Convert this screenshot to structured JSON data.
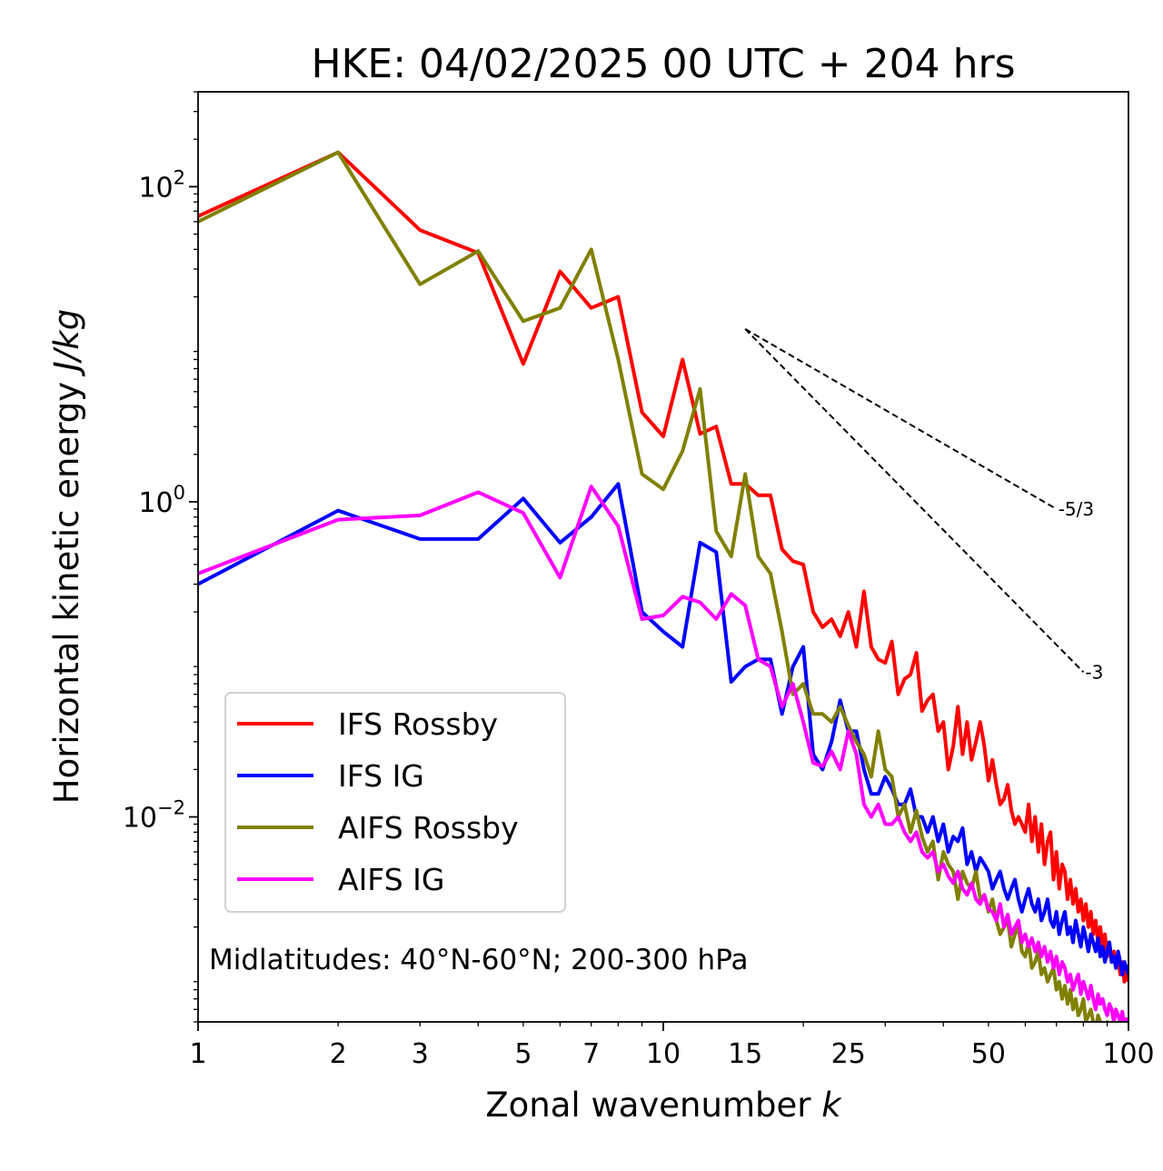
{
  "chart_data": {
    "type": "line",
    "title": "HKE: 04/02/2025 00 UTC + 204 hrs",
    "xlabel": "Zonal wavenumber",
    "xlabel_italic": "k",
    "ylabel": "Horizontal kinetic energy",
    "ylabel_italic": "J/kg",
    "xscale": "log",
    "yscale": "log",
    "xlim": [
      1,
      100
    ],
    "ylim": [
      0.0005,
      400
    ],
    "x_ticks": [
      {
        "value": 1,
        "label": "1"
      },
      {
        "value": 2,
        "label": "2"
      },
      {
        "value": 3,
        "label": "3"
      },
      {
        "value": 5,
        "label": "5"
      },
      {
        "value": 7,
        "label": "7"
      },
      {
        "value": 10,
        "label": "10"
      },
      {
        "value": 15,
        "label": "15"
      },
      {
        "value": 25,
        "label": "25"
      },
      {
        "value": 50,
        "label": "50"
      },
      {
        "value": 100,
        "label": "100"
      }
    ],
    "y_ticks": [
      {
        "value": 0.01,
        "base": "10",
        "exp": "−2"
      },
      {
        "value": 1,
        "base": "10",
        "exp": "0"
      },
      {
        "value": 100,
        "base": "10",
        "exp": "2"
      }
    ],
    "annotation": "Midlatitudes: 40°N-60°N; 200-300 hPa",
    "legend_position": "lower-left",
    "reference_lines": [
      {
        "label": "-5/3",
        "slope": -1.6667,
        "x": [
          15,
          70
        ],
        "y": [
          12.5,
          0.9
        ]
      },
      {
        "label": "-3",
        "slope": -3,
        "x": [
          15,
          80
        ],
        "y": [
          12.5,
          0.083
        ]
      }
    ],
    "series": [
      {
        "name": "IFS Rossby",
        "color": "#ff0000",
        "x": [
          1,
          2,
          3,
          4,
          5,
          6,
          7,
          8,
          9,
          10,
          11,
          12,
          13,
          14,
          15,
          16,
          17,
          18,
          19,
          20,
          21,
          22,
          23,
          24,
          25,
          26,
          27,
          28,
          29,
          30,
          31,
          32,
          33,
          34,
          35,
          36,
          37,
          38,
          39,
          40,
          41,
          42,
          43,
          44,
          45,
          46,
          47,
          48,
          49,
          50,
          51,
          52,
          53,
          54,
          55,
          56,
          57,
          58,
          59,
          60,
          61,
          62,
          63,
          64,
          65,
          66,
          67,
          68,
          69,
          70,
          71,
          72,
          73,
          74,
          75,
          76,
          77,
          78,
          79,
          80,
          81,
          82,
          83,
          84,
          85,
          86,
          87,
          88,
          89,
          90,
          91,
          92,
          93,
          94,
          95,
          96,
          97,
          98,
          99,
          100
        ],
        "y": [
          65,
          165,
          53,
          38,
          7.5,
          29,
          17,
          20,
          3.7,
          2.6,
          8,
          2.7,
          3,
          1.3,
          1.3,
          1.1,
          1.1,
          0.5,
          0.42,
          0.4,
          0.2,
          0.16,
          0.18,
          0.14,
          0.2,
          0.12,
          0.27,
          0.12,
          0.1,
          0.095,
          0.13,
          0.06,
          0.075,
          0.08,
          0.11,
          0.047,
          0.055,
          0.06,
          0.035,
          0.04,
          0.02,
          0.028,
          0.05,
          0.025,
          0.04,
          0.023,
          0.03,
          0.04,
          0.028,
          0.017,
          0.023,
          0.016,
          0.012,
          0.013,
          0.016,
          0.011,
          0.009,
          0.01,
          0.009,
          0.008,
          0.012,
          0.007,
          0.01,
          0.006,
          0.009,
          0.005,
          0.007,
          0.008,
          0.004,
          0.006,
          0.0035,
          0.005,
          0.0045,
          0.003,
          0.004,
          0.0028,
          0.0035,
          0.0025,
          0.003,
          0.0022,
          0.0028,
          0.002,
          0.0025,
          0.0018,
          0.0022,
          0.0016,
          0.002,
          0.0015,
          0.0018,
          0.0013,
          0.0016,
          0.0012,
          0.0014,
          0.0011,
          0.0013,
          0.001,
          0.0012,
          0.0009,
          0.0011,
          0.0009
        ]
      },
      {
        "name": "IFS IG",
        "color": "#0000ff",
        "x": [
          1,
          2,
          3,
          4,
          5,
          6,
          7,
          8,
          9,
          10,
          11,
          12,
          13,
          14,
          15,
          16,
          17,
          18,
          19,
          20,
          21,
          22,
          23,
          24,
          25,
          26,
          27,
          28,
          29,
          30,
          31,
          32,
          33,
          34,
          35,
          36,
          37,
          38,
          39,
          40,
          41,
          42,
          43,
          44,
          45,
          46,
          47,
          48,
          49,
          50,
          51,
          52,
          53,
          54,
          55,
          56,
          57,
          58,
          59,
          60,
          61,
          62,
          63,
          64,
          65,
          66,
          67,
          68,
          69,
          70,
          71,
          72,
          73,
          74,
          75,
          76,
          77,
          78,
          79,
          80,
          81,
          82,
          83,
          84,
          85,
          86,
          87,
          88,
          89,
          90,
          91,
          92,
          93,
          94,
          95,
          96,
          97,
          98,
          99,
          100
        ],
        "y": [
          0.3,
          0.88,
          0.58,
          0.58,
          1.05,
          0.55,
          0.8,
          1.3,
          0.2,
          0.15,
          0.12,
          0.55,
          0.48,
          0.072,
          0.09,
          0.1,
          0.1,
          0.045,
          0.09,
          0.12,
          0.025,
          0.02,
          0.03,
          0.055,
          0.035,
          0.035,
          0.02,
          0.014,
          0.014,
          0.018,
          0.015,
          0.012,
          0.012,
          0.015,
          0.01,
          0.01,
          0.008,
          0.01,
          0.007,
          0.009,
          0.006,
          0.0075,
          0.007,
          0.0085,
          0.005,
          0.006,
          0.0045,
          0.0055,
          0.005,
          0.0045,
          0.0035,
          0.004,
          0.0045,
          0.0035,
          0.003,
          0.0035,
          0.004,
          0.003,
          0.0025,
          0.003,
          0.0035,
          0.0028,
          0.0025,
          0.003,
          0.0022,
          0.0025,
          0.003,
          0.0022,
          0.002,
          0.0025,
          0.0018,
          0.0022,
          0.0025,
          0.0018,
          0.002,
          0.0016,
          0.0022,
          0.0018,
          0.0015,
          0.002,
          0.0017,
          0.0014,
          0.0018,
          0.0016,
          0.0014,
          0.0017,
          0.0013,
          0.0015,
          0.0012,
          0.0014,
          0.0016,
          0.0012,
          0.0013,
          0.0011,
          0.0014,
          0.0012,
          0.001,
          0.0012,
          0.0011,
          0.001
        ]
      },
      {
        "name": "AIFS Rossby",
        "color": "#808000",
        "x": [
          1,
          2,
          3,
          4,
          5,
          6,
          7,
          8,
          9,
          10,
          11,
          12,
          13,
          14,
          15,
          16,
          17,
          18,
          19,
          20,
          21,
          22,
          23,
          24,
          25,
          26,
          27,
          28,
          29,
          30,
          31,
          32,
          33,
          34,
          35,
          36,
          37,
          38,
          39,
          40,
          41,
          42,
          43,
          44,
          45,
          46,
          47,
          48,
          49,
          50,
          51,
          52,
          53,
          54,
          55,
          56,
          57,
          58,
          59,
          60,
          61,
          62,
          63,
          64,
          65,
          66,
          67,
          68,
          69,
          70,
          71,
          72,
          73,
          74,
          75,
          76,
          77,
          78,
          79,
          80,
          81,
          82,
          83,
          84,
          85,
          86,
          87,
          88,
          89,
          90,
          91,
          92,
          93,
          94,
          95,
          96,
          97,
          98,
          99,
          100
        ],
        "y": [
          60,
          165,
          24,
          39,
          14,
          17,
          40,
          8,
          1.5,
          1.2,
          2.1,
          5.2,
          0.65,
          0.45,
          1.5,
          0.45,
          0.35,
          0.15,
          0.06,
          0.07,
          0.045,
          0.045,
          0.04,
          0.05,
          0.038,
          0.03,
          0.025,
          0.018,
          0.035,
          0.02,
          0.018,
          0.01,
          0.012,
          0.008,
          0.011,
          0.0075,
          0.006,
          0.007,
          0.004,
          0.006,
          0.005,
          0.0045,
          0.003,
          0.0045,
          0.0038,
          0.0035,
          0.0045,
          0.003,
          0.0032,
          0.0025,
          0.003,
          0.0022,
          0.0018,
          0.002,
          0.0022,
          0.0015,
          0.0018,
          0.002,
          0.0014,
          0.0013,
          0.0016,
          0.0011,
          0.0012,
          0.0014,
          0.001,
          0.0011,
          0.0009,
          0.001,
          0.0011,
          0.0008,
          0.0009,
          0.0007,
          0.00085,
          0.00065,
          0.0008,
          0.0006,
          0.0007,
          0.00055,
          0.0006,
          0.0007,
          0.0005,
          0.00055,
          0.0006,
          0.0005,
          0.00045,
          0.00055,
          0.0005,
          0.0004,
          0.00045,
          0.0005,
          0.0004,
          0.00042,
          0.00038,
          0.00045,
          0.0004,
          0.00035,
          0.0004,
          0.00038,
          0.00035,
          0.00033
        ]
      },
      {
        "name": "AIFS IG",
        "color": "#ff00ff",
        "x": [
          1,
          2,
          3,
          4,
          5,
          6,
          7,
          8,
          9,
          10,
          11,
          12,
          13,
          14,
          15,
          16,
          17,
          18,
          19,
          20,
          21,
          22,
          23,
          24,
          25,
          26,
          27,
          28,
          29,
          30,
          31,
          32,
          33,
          34,
          35,
          36,
          37,
          38,
          39,
          40,
          41,
          42,
          43,
          44,
          45,
          46,
          47,
          48,
          49,
          50,
          51,
          52,
          53,
          54,
          55,
          56,
          57,
          58,
          59,
          60,
          61,
          62,
          63,
          64,
          65,
          66,
          67,
          68,
          69,
          70,
          71,
          72,
          73,
          74,
          75,
          76,
          77,
          78,
          79,
          80,
          81,
          82,
          83,
          84,
          85,
          86,
          87,
          88,
          89,
          90,
          91,
          92,
          93,
          94,
          95,
          96,
          97,
          98,
          99,
          100
        ],
        "y": [
          0.35,
          0.77,
          0.82,
          1.15,
          0.85,
          0.33,
          1.25,
          0.7,
          0.18,
          0.19,
          0.25,
          0.23,
          0.18,
          0.26,
          0.22,
          0.1,
          0.09,
          0.05,
          0.07,
          0.04,
          0.022,
          0.021,
          0.026,
          0.02,
          0.035,
          0.025,
          0.012,
          0.01,
          0.012,
          0.009,
          0.009,
          0.01,
          0.008,
          0.007,
          0.008,
          0.006,
          0.0055,
          0.006,
          0.0045,
          0.005,
          0.0042,
          0.0038,
          0.0045,
          0.0035,
          0.0032,
          0.0038,
          0.003,
          0.0028,
          0.0032,
          0.0026,
          0.0025,
          0.0022,
          0.0028,
          0.002,
          0.0024,
          0.0018,
          0.002,
          0.0022,
          0.0016,
          0.0018,
          0.0015,
          0.0017,
          0.0014,
          0.0016,
          0.0013,
          0.0015,
          0.0012,
          0.0014,
          0.0011,
          0.0013,
          0.001,
          0.0012,
          0.0011,
          0.0009,
          0.001,
          0.0008,
          0.0009,
          0.001,
          0.00075,
          0.0009,
          0.0008,
          0.0007,
          0.00085,
          0.0007,
          0.0006,
          0.00075,
          0.00065,
          0.0007,
          0.0006,
          0.00055,
          0.00065,
          0.0006,
          0.0005,
          0.0006,
          0.00055,
          0.0005,
          0.00058,
          0.00048,
          0.00052,
          0.00045
        ]
      }
    ]
  }
}
